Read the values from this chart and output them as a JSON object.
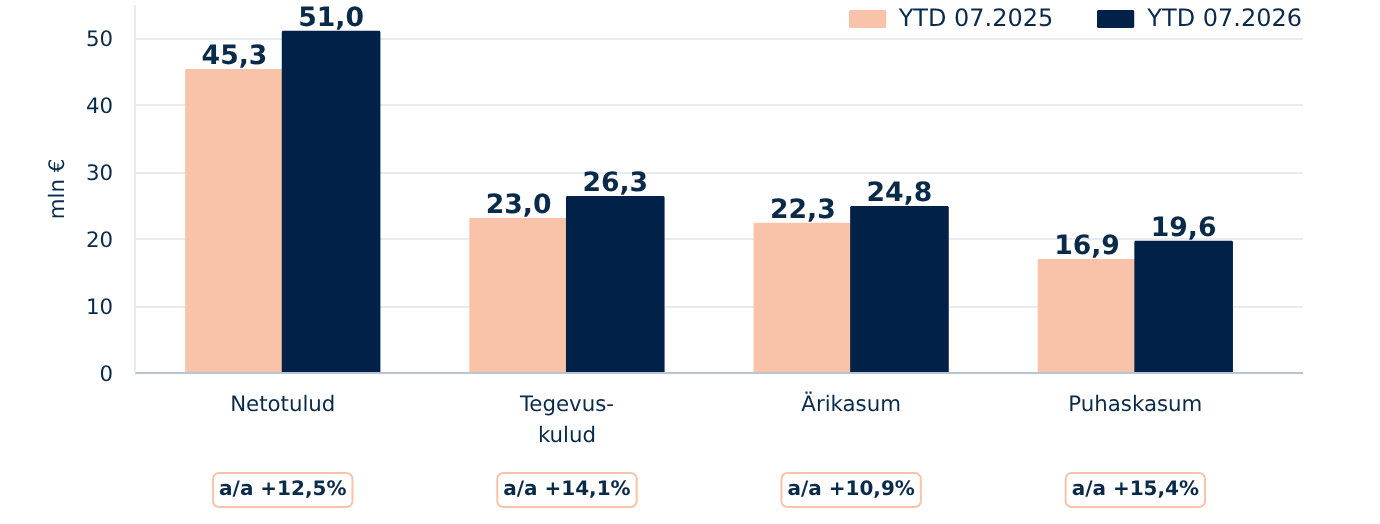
{
  "chart_data": {
    "type": "bar",
    "ylabel": "mln €",
    "categories": [
      "Netotulud",
      "Tegevus-\nkulud",
      "Ärikasum",
      "Puhaskasum"
    ],
    "series": [
      {
        "name": "YTD 07.2025",
        "color": "#f8c3a8",
        "values": [
          45.3,
          23.0,
          22.3,
          16.9
        ],
        "value_labels": [
          "45,3",
          "23,0",
          "22,3",
          "16,9"
        ]
      },
      {
        "name": "YTD 07.2026",
        "color": "#012148",
        "values": [
          51.0,
          26.3,
          24.8,
          19.6
        ],
        "value_labels": [
          "51,0",
          "26,3",
          "24,8",
          "19,6"
        ]
      }
    ],
    "ylim": [
      0,
      55
    ],
    "yticks": [
      0,
      10,
      20,
      30,
      40,
      50
    ],
    "grid": "y",
    "legend": "top right",
    "annotations": [
      "a/a +12,5%",
      "a/a +14,1%",
      "a/a +10,9%",
      "a/a +15,4%"
    ]
  }
}
